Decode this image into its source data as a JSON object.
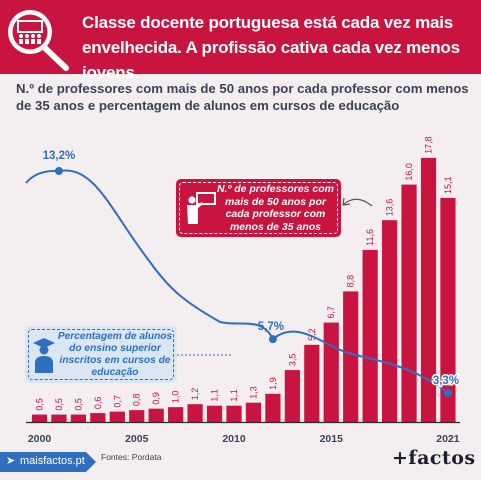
{
  "header": {
    "title": "Classe docente portuguesa está cada vez mais envelhecida. A profissão cativa cada vez menos jovens."
  },
  "subtitle": "N.º de professores com mais de 50 anos por cada professor com menos de 35 anos e percentagem de alunos em cursos de educação",
  "callouts": {
    "teachers": "N.º de professores com mais de 50 anos por cada professor com menos de 35 anos",
    "students": "Percentagem de alunos do ensino superior inscritos em cursos de educação"
  },
  "footer": {
    "site": "maisfactos.pt",
    "source": "Fontes: Pordata",
    "brand": "+factos"
  },
  "colors": {
    "bar": "#c8143f",
    "line": "#2f6fc0",
    "header": "#c8143f"
  },
  "chart_data": {
    "type": "bar",
    "categories": [
      "2000",
      "2001",
      "2002",
      "2003",
      "2004",
      "2005",
      "2006",
      "2007",
      "2008",
      "2009",
      "2010",
      "2011",
      "2012",
      "2013",
      "2014",
      "2015",
      "2016",
      "2017",
      "2018",
      "2019",
      "2020",
      "2021"
    ],
    "x_tick_labels": [
      "2000",
      "2005",
      "2010",
      "2015",
      "2021"
    ],
    "series": [
      {
        "name": "N.º de professores com mais de 50 anos por cada professor com menos de 35 anos",
        "type": "bar",
        "values": [
          0.5,
          0.5,
          0.5,
          0.6,
          0.7,
          0.8,
          0.9,
          1.0,
          1.2,
          1.1,
          1.1,
          1.3,
          1.9,
          3.5,
          5.2,
          6.7,
          8.8,
          11.6,
          13.6,
          16.0,
          17.8,
          15.1
        ],
        "labels": [
          "0,5",
          "0,5",
          "0,5",
          "0,6",
          "0,7",
          "0,8",
          "0,9",
          "1,0",
          "1,2",
          "1,1",
          "1,1",
          "1,3",
          "1,9",
          "3,5",
          "5,2",
          "6,7",
          "8,8",
          "11,6",
          "13,6",
          "16,0",
          "17,8",
          "15,1"
        ]
      },
      {
        "name": "Percentagem de alunos do ensino superior inscritos em cursos de educação",
        "type": "line",
        "points": [
          {
            "x": 2001,
            "y": 13.2,
            "label": "13,2%"
          },
          {
            "x": 2012,
            "y": 5.7,
            "label": "5,7%"
          },
          {
            "x": 2021,
            "y": 3.3,
            "label": "3,3%"
          }
        ]
      }
    ],
    "ylim": [
      0,
      18.6
    ]
  }
}
